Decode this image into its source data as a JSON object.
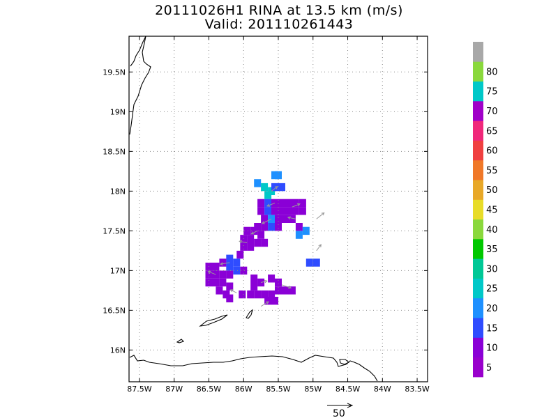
{
  "title": {
    "line1": "20111026H1 RINA at 13.5 km (m/s)",
    "line2": "Valid: 201110261443"
  },
  "map": {
    "lat_ticks": [
      {
        "value": 19.5,
        "label": "19.5N"
      },
      {
        "value": 19.0,
        "label": "19N"
      },
      {
        "value": 18.5,
        "label": "18.5N"
      },
      {
        "value": 18.0,
        "label": "18N"
      },
      {
        "value": 17.5,
        "label": "17.5N"
      },
      {
        "value": 17.0,
        "label": "17N"
      },
      {
        "value": 16.5,
        "label": "16.5N"
      },
      {
        "value": 16.0,
        "label": "16N"
      }
    ],
    "lon_ticks": [
      {
        "value": -87.5,
        "label": "87.5W"
      },
      {
        "value": -87.0,
        "label": "87W"
      },
      {
        "value": -86.5,
        "label": "86.5W"
      },
      {
        "value": -86.0,
        "label": "86W"
      },
      {
        "value": -85.5,
        "label": "85.5W"
      },
      {
        "value": -85.0,
        "label": "85W"
      },
      {
        "value": -84.5,
        "label": "84.5W"
      },
      {
        "value": -84.0,
        "label": "84W"
      },
      {
        "value": -83.5,
        "label": "83.5W"
      }
    ],
    "lon_range": [
      -87.65,
      -83.35
    ],
    "lat_range": [
      15.6,
      19.95
    ],
    "grid": "dotted",
    "wind_cells": [
      {
        "lon": -85.55,
        "lat": 18.2,
        "v": 18
      },
      {
        "lon": -85.5,
        "lat": 18.2,
        "v": 15
      },
      {
        "lon": -85.8,
        "lat": 18.1,
        "v": 16
      },
      {
        "lon": -85.7,
        "lat": 18.05,
        "v": 22
      },
      {
        "lon": -85.6,
        "lat": 18.0,
        "v": 24
      },
      {
        "lon": -85.65,
        "lat": 17.95,
        "v": 20
      },
      {
        "lon": -85.55,
        "lat": 18.05,
        "v": 12
      },
      {
        "lon": -85.45,
        "lat": 18.05,
        "v": 13
      },
      {
        "lon": -85.75,
        "lat": 17.85,
        "v": 8
      },
      {
        "lon": -85.65,
        "lat": 17.85,
        "v": 12
      },
      {
        "lon": -85.55,
        "lat": 17.85,
        "v": 9
      },
      {
        "lon": -85.45,
        "lat": 17.85,
        "v": 6
      },
      {
        "lon": -85.35,
        "lat": 17.85,
        "v": 7
      },
      {
        "lon": -85.25,
        "lat": 17.85,
        "v": 6
      },
      {
        "lon": -85.15,
        "lat": 17.85,
        "v": 8
      },
      {
        "lon": -85.75,
        "lat": 17.75,
        "v": 9
      },
      {
        "lon": -85.65,
        "lat": 17.75,
        "v": 14
      },
      {
        "lon": -85.55,
        "lat": 17.75,
        "v": 8
      },
      {
        "lon": -85.45,
        "lat": 17.75,
        "v": 7
      },
      {
        "lon": -85.35,
        "lat": 17.75,
        "v": 6
      },
      {
        "lon": -85.25,
        "lat": 17.75,
        "v": 7
      },
      {
        "lon": -85.15,
        "lat": 17.75,
        "v": 6
      },
      {
        "lon": -85.7,
        "lat": 17.65,
        "v": 9
      },
      {
        "lon": -85.6,
        "lat": 17.65,
        "v": 16
      },
      {
        "lon": -85.5,
        "lat": 17.65,
        "v": 8
      },
      {
        "lon": -85.4,
        "lat": 17.65,
        "v": 7
      },
      {
        "lon": -85.3,
        "lat": 17.65,
        "v": 8
      },
      {
        "lon": -85.8,
        "lat": 17.55,
        "v": 7
      },
      {
        "lon": -85.7,
        "lat": 17.55,
        "v": 8
      },
      {
        "lon": -85.6,
        "lat": 17.55,
        "v": 12
      },
      {
        "lon": -85.5,
        "lat": 17.55,
        "v": 9
      },
      {
        "lon": -85.2,
        "lat": 17.55,
        "v": 7
      },
      {
        "lon": -85.1,
        "lat": 17.5,
        "v": 17
      },
      {
        "lon": -85.2,
        "lat": 17.45,
        "v": 18
      },
      {
        "lon": -85.95,
        "lat": 17.5,
        "v": 7
      },
      {
        "lon": -85.85,
        "lat": 17.5,
        "v": 6
      },
      {
        "lon": -85.75,
        "lat": 17.45,
        "v": 8
      },
      {
        "lon": -86.0,
        "lat": 17.4,
        "v": 7
      },
      {
        "lon": -85.9,
        "lat": 17.4,
        "v": 6
      },
      {
        "lon": -85.8,
        "lat": 17.35,
        "v": 7
      },
      {
        "lon": -85.7,
        "lat": 17.35,
        "v": 6
      },
      {
        "lon": -86.0,
        "lat": 17.3,
        "v": 8
      },
      {
        "lon": -85.9,
        "lat": 17.3,
        "v": 7
      },
      {
        "lon": -86.05,
        "lat": 17.2,
        "v": 6
      },
      {
        "lon": -84.95,
        "lat": 17.1,
        "v": 14
      },
      {
        "lon": -85.05,
        "lat": 17.1,
        "v": 13
      },
      {
        "lon": -86.2,
        "lat": 17.15,
        "v": 13
      },
      {
        "lon": -86.1,
        "lat": 17.1,
        "v": 14
      },
      {
        "lon": -86.3,
        "lat": 17.1,
        "v": 8
      },
      {
        "lon": -86.4,
        "lat": 17.05,
        "v": 7
      },
      {
        "lon": -86.5,
        "lat": 17.05,
        "v": 6
      },
      {
        "lon": -86.2,
        "lat": 17.05,
        "v": 12
      },
      {
        "lon": -86.1,
        "lat": 17.0,
        "v": 13
      },
      {
        "lon": -86.0,
        "lat": 17.0,
        "v": 9
      },
      {
        "lon": -86.3,
        "lat": 16.95,
        "v": 7
      },
      {
        "lon": -86.4,
        "lat": 16.95,
        "v": 8
      },
      {
        "lon": -86.5,
        "lat": 16.95,
        "v": 7
      },
      {
        "lon": -86.2,
        "lat": 16.95,
        "v": 8
      },
      {
        "lon": -86.5,
        "lat": 16.85,
        "v": 6
      },
      {
        "lon": -86.4,
        "lat": 16.85,
        "v": 7
      },
      {
        "lon": -86.3,
        "lat": 16.85,
        "v": 6
      },
      {
        "lon": -86.2,
        "lat": 16.8,
        "v": 7
      },
      {
        "lon": -86.35,
        "lat": 16.75,
        "v": 6
      },
      {
        "lon": -86.25,
        "lat": 16.7,
        "v": 7
      },
      {
        "lon": -86.2,
        "lat": 16.65,
        "v": 6
      },
      {
        "lon": -85.85,
        "lat": 16.9,
        "v": 6
      },
      {
        "lon": -85.75,
        "lat": 16.85,
        "v": 7
      },
      {
        "lon": -85.85,
        "lat": 16.8,
        "v": 8
      },
      {
        "lon": -85.6,
        "lat": 16.9,
        "v": 6
      },
      {
        "lon": -85.5,
        "lat": 16.85,
        "v": 7
      },
      {
        "lon": -85.9,
        "lat": 16.7,
        "v": 7
      },
      {
        "lon": -85.8,
        "lat": 16.7,
        "v": 6
      },
      {
        "lon": -85.7,
        "lat": 16.7,
        "v": 7
      },
      {
        "lon": -85.6,
        "lat": 16.7,
        "v": 8
      },
      {
        "lon": -85.5,
        "lat": 16.75,
        "v": 9
      },
      {
        "lon": -85.4,
        "lat": 16.75,
        "v": 8
      },
      {
        "lon": -85.3,
        "lat": 16.75,
        "v": 7
      },
      {
        "lon": -85.65,
        "lat": 16.62,
        "v": 6
      },
      {
        "lon": -85.55,
        "lat": 16.62,
        "v": 7
      },
      {
        "lon": -86.02,
        "lat": 16.7,
        "v": 6
      }
    ],
    "wind_vectors": [
      {
        "lon": -85.6,
        "lat": 18.0,
        "u": 4,
        "v": 3
      },
      {
        "lon": -85.55,
        "lat": 17.85,
        "u": -5,
        "v": -2
      },
      {
        "lon": -85.3,
        "lat": 17.8,
        "u": 5,
        "v": 2
      },
      {
        "lon": -85.6,
        "lat": 17.65,
        "u": -6,
        "v": -3
      },
      {
        "lon": -85.25,
        "lat": 17.65,
        "u": -5,
        "v": 1
      },
      {
        "lon": -84.95,
        "lat": 17.65,
        "u": 5,
        "v": 4
      },
      {
        "lon": -85.8,
        "lat": 17.5,
        "u": -4,
        "v": -2
      },
      {
        "lon": -85.95,
        "lat": 17.35,
        "u": -5,
        "v": 1
      },
      {
        "lon": -84.95,
        "lat": 17.25,
        "u": 3,
        "v": 4
      },
      {
        "lon": -86.2,
        "lat": 17.1,
        "u": -6,
        "v": -1
      },
      {
        "lon": -86.4,
        "lat": 16.95,
        "u": -5,
        "v": 2
      },
      {
        "lon": -85.75,
        "lat": 16.85,
        "u": 4,
        "v": 1
      },
      {
        "lon": -85.45,
        "lat": 16.82,
        "u": 6,
        "v": -2
      },
      {
        "lon": -85.75,
        "lat": 16.55,
        "u": 5,
        "v": 3
      },
      {
        "lon": -86.1,
        "lat": 16.72,
        "u": -4,
        "v": 2
      }
    ]
  },
  "colorbar": {
    "colors": [
      "#9900cc",
      "#8a00d6",
      "#2f4cff",
      "#1e90ff",
      "#00c8c8",
      "#00c896",
      "#00c800",
      "#8ad83c",
      "#e8dc28",
      "#e8a828",
      "#f07828",
      "#f04040",
      "#f0287a",
      "#a000c8",
      "#00c8c8",
      "#8ad83c",
      "#a8a8a8"
    ],
    "labels": [
      "5",
      "10",
      "15",
      "20",
      "25",
      "30",
      "35",
      "40",
      "45",
      "50",
      "55",
      "60",
      "65",
      "70",
      "75",
      "80"
    ]
  },
  "scale_vector": {
    "label": "50"
  }
}
